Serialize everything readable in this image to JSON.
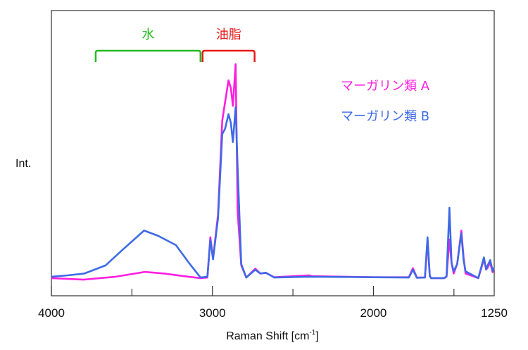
{
  "chart_data": {
    "type": "line",
    "xlabel": "Raman Shift [cm",
    "xlabel_sup": "-1",
    "xlabel_end": "]",
    "ylabel": "Int.",
    "xlim": [
      4000,
      1250
    ],
    "x_reversed": true,
    "ylim": [
      -6.3,
      100
    ],
    "grid": false,
    "x_ticks": [
      4000,
      3500,
      3000,
      2500,
      2000,
      1500
    ],
    "x_tick_labels": [
      "4000",
      "3000",
      "2000",
      "1250"
    ],
    "x_tick_label_values": [
      4000,
      3000,
      2000,
      1250
    ],
    "legend_position": "top-right",
    "annotations": [
      {
        "text": "水",
        "from": 3725,
        "to": 3074,
        "color": "#22bb22"
      },
      {
        "text": "油脂",
        "from": 3061,
        "to": 2738,
        "color": "#e81818"
      }
    ],
    "series": [
      {
        "name": "マーガリン類 A",
        "color": "#ff1ee0",
        "x": [
          4000,
          3800,
          3600,
          3420,
          3300,
          3150,
          3074,
          3031,
          3013,
          2996,
          2965,
          2939,
          2921,
          2900,
          2885,
          2873,
          2856,
          2843,
          2821,
          2790,
          2734,
          2703,
          2668,
          2616,
          2400,
          2380,
          2000,
          1780,
          1755,
          1730,
          1680,
          1664,
          1650,
          1642,
          1560,
          1546,
          1528,
          1515,
          1502,
          1480,
          1454,
          1440,
          1428,
          1349,
          1314,
          1300,
          1293,
          1275,
          1260,
          1253
        ],
        "y": [
          0.3,
          -0.3,
          0.8,
          2.6,
          2,
          0.8,
          0.3,
          0.5,
          15.5,
          7.5,
          24,
          59,
          66,
          74,
          71,
          64.5,
          80,
          25,
          5,
          0.5,
          3.8,
          2,
          2.2,
          0.6,
          1.3,
          1,
          0.6,
          0.6,
          4,
          0.5,
          0.5,
          14,
          1,
          0.3,
          0.3,
          0.8,
          14.7,
          6,
          2,
          5.5,
          18,
          8,
          2,
          0.3,
          7.3,
          3.5,
          4,
          6,
          2.5,
          4
        ]
      },
      {
        "name": "マーガリン類 B",
        "color": "#3e6ae6",
        "x": [
          4000,
          3900,
          3795,
          3664,
          3555,
          3424,
          3336,
          3227,
          3140,
          3074,
          3031,
          3013,
          2996,
          2965,
          2939,
          2921,
          2900,
          2885,
          2873,
          2856,
          2843,
          2821,
          2790,
          2734,
          2703,
          2668,
          2616,
          2400,
          2000,
          1780,
          1755,
          1730,
          1680,
          1664,
          1650,
          1642,
          1560,
          1546,
          1528,
          1515,
          1502,
          1480,
          1454,
          1440,
          1428,
          1349,
          1314,
          1300,
          1293,
          1275,
          1260,
          1253
        ],
        "y": [
          0.8,
          1.3,
          2,
          5,
          11,
          18,
          16,
          12.6,
          5.5,
          0.5,
          0.8,
          14.7,
          7.3,
          22.6,
          54,
          56,
          61.4,
          58,
          51,
          64,
          41,
          5.5,
          0.5,
          3.4,
          2,
          2.3,
          0.5,
          0.8,
          0.6,
          0.5,
          3.4,
          0.4,
          0.5,
          15.5,
          1,
          0.3,
          0.3,
          1,
          26.5,
          6,
          2.8,
          5.5,
          17,
          7,
          2.8,
          0.3,
          8,
          3.5,
          4.7,
          7,
          3,
          4.2
        ]
      }
    ]
  }
}
